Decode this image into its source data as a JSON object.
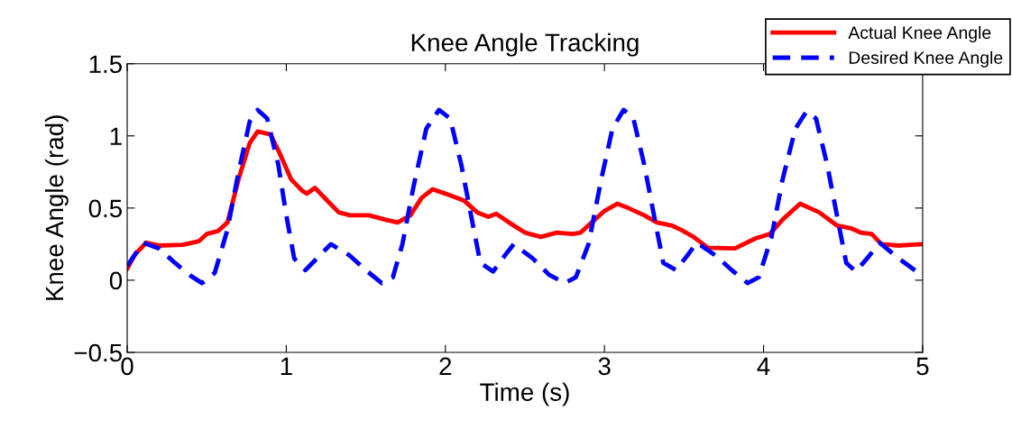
{
  "chart_data": {
    "type": "line",
    "title": "Knee Angle Tracking",
    "xlabel": "Time (s)",
    "ylabel": "Knee Angle (rad)",
    "xlim": [
      0,
      5
    ],
    "xticks": [
      0,
      1,
      2,
      3,
      4,
      5
    ],
    "ylim": [
      -0.5,
      1.5
    ],
    "yticks": [
      {
        "value": -0.5,
        "label": "−0.5"
      },
      0,
      0.5,
      1,
      1.5
    ],
    "grid": false,
    "legend": "top right",
    "marker": "none",
    "series": [
      {
        "name": "Actual Knee Angle",
        "color": "#ff0000",
        "line_style": "solid",
        "x": [
          0,
          0.05,
          0.12,
          0.2,
          0.35,
          0.45,
          0.5,
          0.57,
          0.63,
          0.7,
          0.77,
          0.82,
          0.9,
          0.95,
          1.03,
          1.1,
          1.13,
          1.18,
          1.25,
          1.33,
          1.4,
          1.52,
          1.62,
          1.7,
          1.78,
          1.85,
          1.92,
          2.0,
          2.12,
          2.2,
          2.27,
          2.32,
          2.4,
          2.5,
          2.6,
          2.7,
          2.8,
          2.85,
          2.92,
          3.0,
          3.08,
          3.15,
          3.25,
          3.33,
          3.42,
          3.48,
          3.56,
          3.65,
          3.82,
          3.95,
          4.04,
          4.12,
          4.23,
          4.35,
          4.46,
          4.55,
          4.61,
          4.68,
          4.74,
          4.85,
          5.0
        ],
        "values": [
          0.08,
          0.18,
          0.26,
          0.24,
          0.245,
          0.27,
          0.32,
          0.34,
          0.4,
          0.7,
          0.95,
          1.03,
          1.01,
          0.9,
          0.7,
          0.62,
          0.6,
          0.64,
          0.56,
          0.47,
          0.45,
          0.45,
          0.42,
          0.4,
          0.45,
          0.57,
          0.63,
          0.6,
          0.55,
          0.47,
          0.44,
          0.46,
          0.4,
          0.33,
          0.3,
          0.33,
          0.32,
          0.33,
          0.4,
          0.48,
          0.53,
          0.5,
          0.45,
          0.4,
          0.38,
          0.35,
          0.3,
          0.225,
          0.22,
          0.29,
          0.32,
          0.42,
          0.53,
          0.47,
          0.38,
          0.36,
          0.33,
          0.32,
          0.25,
          0.24,
          0.25
        ]
      },
      {
        "name": "Desired Knee Angle",
        "color": "#0000ff",
        "line_style": "dashed",
        "x": [
          0,
          0.1,
          0.2,
          0.3,
          0.4,
          0.47,
          0.55,
          0.63,
          0.7,
          0.77,
          0.82,
          0.88,
          0.95,
          1.0,
          1.05,
          1.12,
          1.2,
          1.28,
          1.4,
          1.5,
          1.6,
          1.67,
          1.73,
          1.8,
          1.88,
          1.96,
          2.03,
          2.1,
          2.17,
          2.22,
          2.3,
          2.38,
          2.43,
          2.55,
          2.65,
          2.75,
          2.82,
          2.9,
          2.98,
          3.05,
          3.12,
          3.18,
          3.25,
          3.32,
          3.37,
          3.45,
          3.52,
          3.58,
          3.7,
          3.8,
          3.9,
          3.97,
          4.05,
          4.12,
          4.2,
          4.27,
          4.33,
          4.4,
          4.47,
          4.52,
          4.58,
          4.65,
          4.73,
          4.85,
          5.0
        ],
        "values": [
          0.1,
          0.26,
          0.22,
          0.12,
          0.03,
          -0.02,
          0.05,
          0.35,
          0.75,
          1.1,
          1.18,
          1.12,
          0.8,
          0.45,
          0.15,
          0.07,
          0.16,
          0.25,
          0.17,
          0.07,
          -0.02,
          0.02,
          0.25,
          0.65,
          1.05,
          1.18,
          1.12,
          0.8,
          0.4,
          0.12,
          0.06,
          0.18,
          0.25,
          0.15,
          0.04,
          -0.02,
          0.02,
          0.25,
          0.7,
          1.05,
          1.18,
          1.13,
          0.8,
          0.4,
          0.12,
          0.07,
          0.17,
          0.26,
          0.17,
          0.07,
          -0.02,
          0.02,
          0.3,
          0.7,
          1.05,
          1.17,
          1.12,
          0.8,
          0.4,
          0.12,
          0.06,
          0.15,
          0.26,
          0.15,
          0.03
        ]
      }
    ]
  }
}
